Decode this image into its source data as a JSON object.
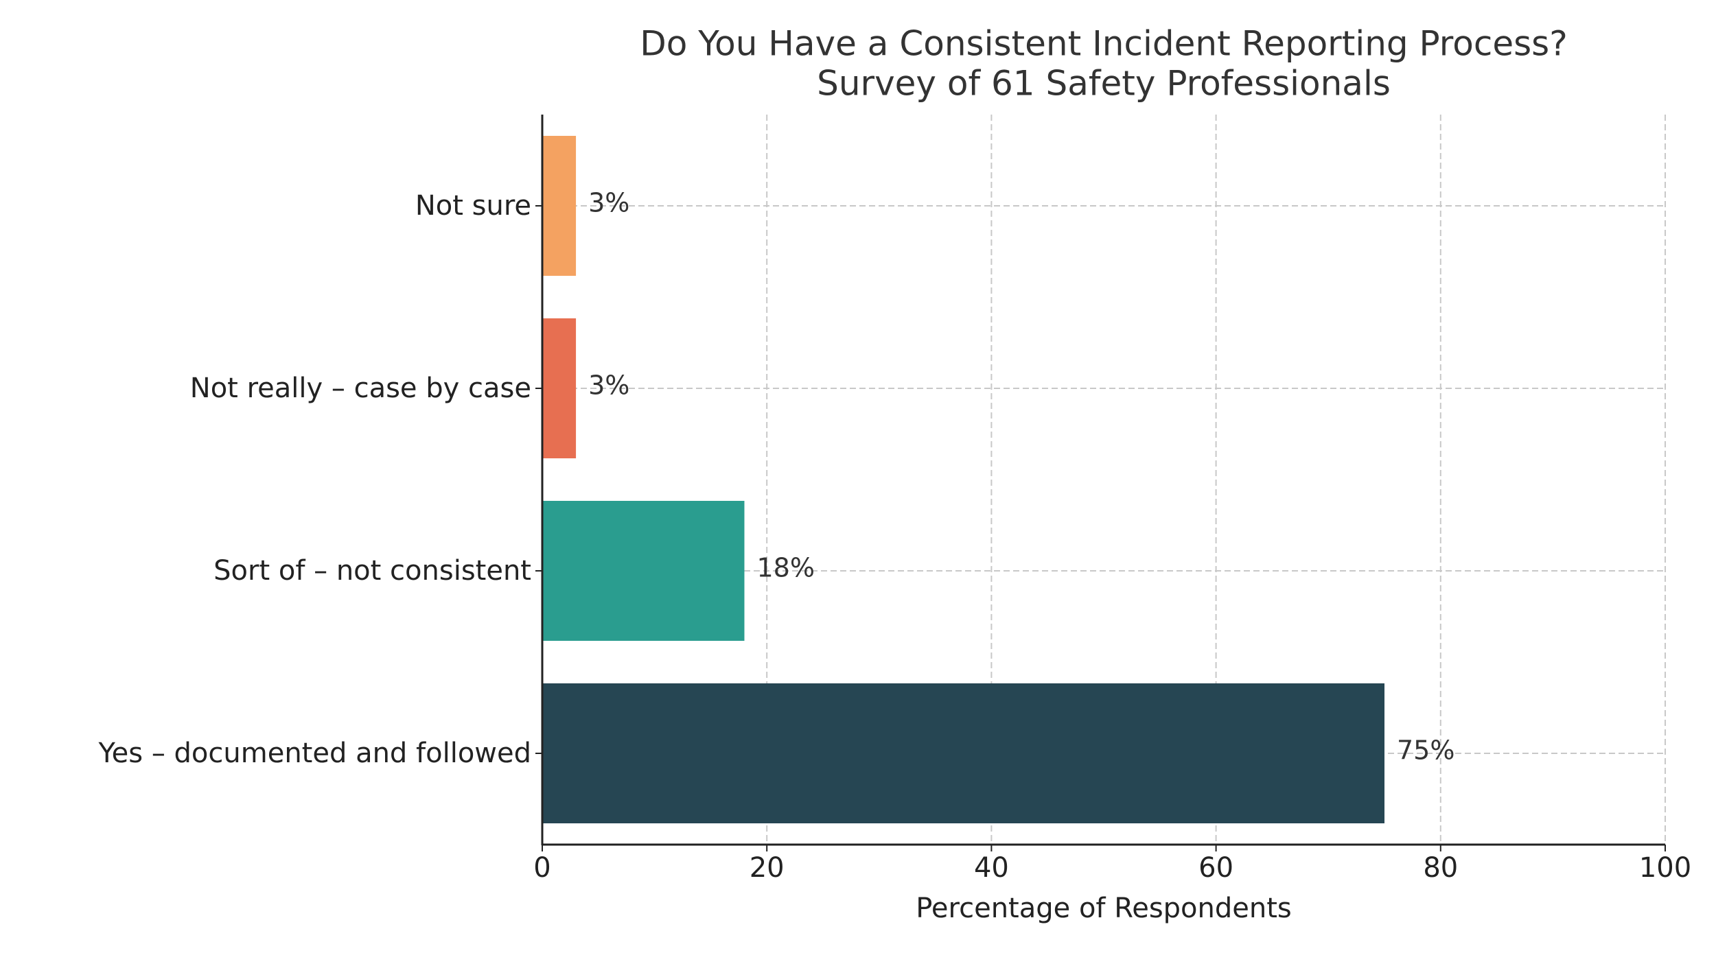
{
  "chart_data": {
    "type": "barh",
    "title": "Do You Have a Consistent Incident Reporting Process?",
    "subtitle": "Survey of 61 Safety Professionals",
    "xlabel": "Percentage of Respondents",
    "categories": [
      "Yes – documented and followed",
      "Sort of – not consistent",
      "Not really – case by case",
      "Not sure"
    ],
    "values": [
      75,
      18,
      3,
      3
    ],
    "value_labels": [
      "75%",
      "18%",
      "3%",
      "3%"
    ],
    "colors": [
      "#264653",
      "#2a9d8f",
      "#e76f51",
      "#f4a261"
    ],
    "xlim": [
      0,
      100
    ],
    "xticks": [
      0,
      20,
      40,
      60,
      80,
      100
    ],
    "grid": true
  }
}
